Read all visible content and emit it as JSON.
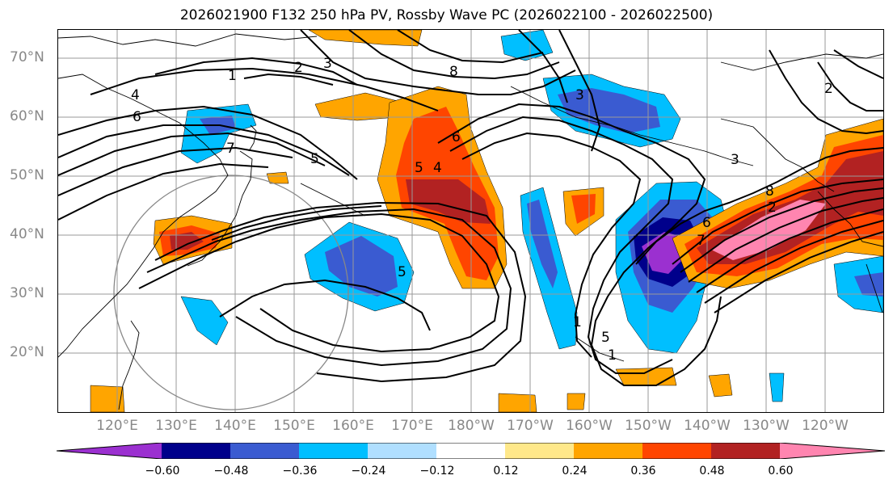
{
  "title": "2026021900 F132 250 hPa PV, Rossby Wave PC (2026022100 - 2026022500)",
  "latitude_labels": [
    "70°N",
    "60°N",
    "50°N",
    "40°N",
    "30°N",
    "20°N"
  ],
  "longitude_labels": [
    "120°E",
    "130°E",
    "140°E",
    "150°E",
    "160°E",
    "170°E",
    "180°W",
    "170°W",
    "160°W",
    "150°W",
    "140°W",
    "130°W",
    "120°W"
  ],
  "colorbar": {
    "ticks": [
      "−0.60",
      "−0.48",
      "−0.36",
      "−0.24",
      "−0.12",
      "0.12",
      "0.24",
      "0.36",
      "0.48",
      "0.60"
    ],
    "colors": [
      "#9b30d0",
      "#00008b",
      "#3a5bd1",
      "#00bfff",
      "#b0dfff",
      "#ffffff",
      "#ffe88a",
      "#ffa500",
      "#ff4500",
      "#b22222",
      "#ff85b0"
    ]
  },
  "pv_contour_labels": [
    "1",
    "2",
    "3",
    "4",
    "6",
    "7",
    "5",
    "8",
    "5",
    "4",
    "6",
    "3",
    "1",
    "3",
    "8",
    "2",
    "7",
    "6",
    "5",
    "5",
    "1",
    "2"
  ]
}
